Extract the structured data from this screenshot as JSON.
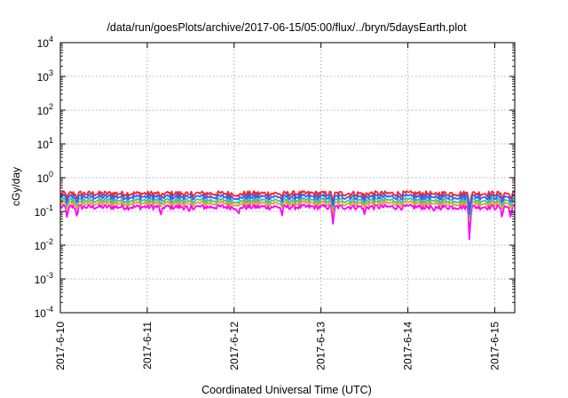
{
  "chart_data": {
    "type": "line",
    "title": "/data/run/goesPlots/archive/2017-06-15/05:00/flux/../bryn/5daysEarth.plot",
    "xlabel": "Coordinated Universal Time (UTC)",
    "ylabel": "cGy/day",
    "yscale": "log",
    "ylim": [
      0.0001,
      10000
    ],
    "xlim": [
      0,
      5.23
    ],
    "grid": true,
    "x_ticks": [
      {
        "label": "2017-6-10",
        "value": 0
      },
      {
        "label": "2017-6-11",
        "value": 1
      },
      {
        "label": "2017-6-12",
        "value": 2
      },
      {
        "label": "2017-6-13",
        "value": 3
      },
      {
        "label": "2017-6-14",
        "value": 4
      },
      {
        "label": "2017-6-15",
        "value": 5
      }
    ],
    "y_ticks": [
      {
        "base": "10",
        "exp": "4",
        "value": 10000
      },
      {
        "base": "10",
        "exp": "3",
        "value": 1000
      },
      {
        "base": "10",
        "exp": "2",
        "value": 100
      },
      {
        "base": "10",
        "exp": "1",
        "value": 10
      },
      {
        "base": "10",
        "exp": "0",
        "value": 1
      },
      {
        "base": "10",
        "exp": "-1",
        "value": 0.1
      },
      {
        "base": "10",
        "exp": "-2",
        "value": 0.01
      },
      {
        "base": "10",
        "exp": "-3",
        "value": 0.001
      },
      {
        "base": "10",
        "exp": "-4",
        "value": 0.0001
      }
    ],
    "x_unit": "days since 2017-06-10 00:00 UTC",
    "series": [
      {
        "color": "#ff2020",
        "base": 0.35
      },
      {
        "color": "#3060ff",
        "base": 0.28
      },
      {
        "color": "#40c0a0",
        "base": 0.22
      },
      {
        "color": "#e8a020",
        "base": 0.18
      },
      {
        "color": "#ff00ff",
        "base": 0.14
      }
    ],
    "dips": [
      {
        "x": 0.08,
        "factor": 0.45
      },
      {
        "x": 0.19,
        "factor": 0.55
      },
      {
        "x": 1.16,
        "factor": 0.5
      },
      {
        "x": 1.48,
        "factor": 0.6
      },
      {
        "x": 2.05,
        "factor": 0.5
      },
      {
        "x": 2.55,
        "factor": 0.55
      },
      {
        "x": 3.14,
        "factor": 0.28
      },
      {
        "x": 3.5,
        "factor": 0.6
      },
      {
        "x": 4.3,
        "factor": 0.6
      },
      {
        "x": 4.71,
        "factor": 0.015
      },
      {
        "x": 5.08,
        "factor": 0.55
      },
      {
        "x": 5.18,
        "factor": 0.5
      }
    ]
  }
}
